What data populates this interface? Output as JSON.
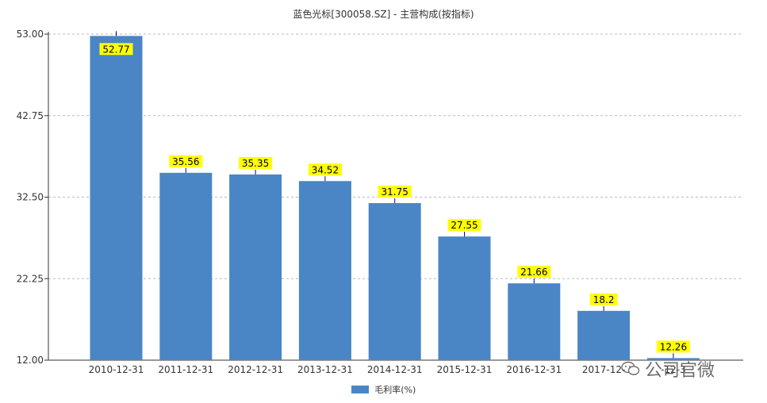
{
  "chart_data": {
    "type": "bar",
    "title": "蓝色光标[300058.SZ] - 主营构成(按指标)",
    "categories": [
      "2010-12-31",
      "2011-12-31",
      "2012-12-31",
      "2013-12-31",
      "2014-12-31",
      "2015-12-31",
      "2016-12-31",
      "2017-12-31",
      "2018-12-31"
    ],
    "tick_labels": [
      "2010-12-31",
      "2011-12-31",
      "2012-12-31",
      "2013-12-31",
      "2014-12-31",
      "2015-12-31",
      "2016-12-31",
      "2017-12-",
      "-12-3"
    ],
    "series": [
      {
        "name": "毛利率(%)",
        "values": [
          52.77,
          35.56,
          35.35,
          34.52,
          31.75,
          27.55,
          21.66,
          18.2,
          12.26
        ],
        "labels": [
          "52.77",
          "35.56",
          "35.35",
          "34.52",
          "31.75",
          "27.55",
          "21.66",
          "18.2",
          "12.26"
        ]
      }
    ],
    "ylim": [
      12.0,
      53.0
    ],
    "yticks": [
      12.0,
      22.25,
      32.5,
      42.75,
      53.0
    ],
    "ytick_labels": [
      "12.00",
      "22.25",
      "32.50",
      "42.75",
      "53.00"
    ],
    "grid": true,
    "legend_position": "bottom-center",
    "colors": {
      "bar": "#4a86c5",
      "label_bg": "#ffff00",
      "label_text": "#000000",
      "grid": "#bbbbbb",
      "axis": "#333333"
    }
  },
  "watermark": {
    "text": "公司官微",
    "icon": "wechat-icon"
  }
}
